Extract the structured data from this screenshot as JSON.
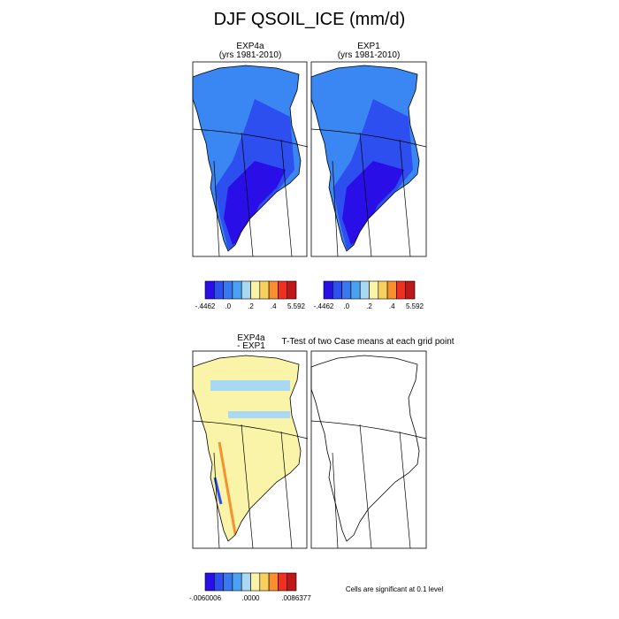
{
  "header": {
    "title": "DJF QSOIL_ICE (mm/d)"
  },
  "panels": [
    {
      "title": "EXP4a",
      "subtitle": "(yrs 1981-2010)"
    },
    {
      "title": "EXP1",
      "subtitle": "(yrs 1981-2010)"
    },
    {
      "title": "EXP4a",
      "subtitle": "- EXP1"
    },
    {
      "title": "T-Test of two Case means at each grid point"
    }
  ],
  "colorbars": [
    {
      "colors": [
        "#2a0ee8",
        "#2d4ff0",
        "#3878f0",
        "#4aa2f2",
        "#a8d8f4",
        "#faf4a8",
        "#f8d060",
        "#f89030",
        "#f03020",
        "#c01818"
      ],
      "labels": [
        "-.4462",
        ".0",
        ".2",
        ".4",
        "5.592"
      ]
    },
    {
      "colors": [
        "#2a0ee8",
        "#2d4ff0",
        "#3878f0",
        "#4aa2f2",
        "#a8d8f4",
        "#faf4a8",
        "#f8d060",
        "#f89030",
        "#f03020",
        "#c01818"
      ],
      "labels": [
        "-.4462",
        ".0",
        ".2",
        ".4",
        "5.592"
      ]
    },
    {
      "colors": [
        "#2a0ee8",
        "#2d4ff0",
        "#3878f0",
        "#4aa2f2",
        "#a8d8f4",
        "#faf4a8",
        "#f8d060",
        "#f89030",
        "#f03020",
        "#c01818"
      ],
      "labels": [
        "-.0060006",
        ".0000",
        ".0086377"
      ]
    }
  ],
  "footnote": "Cells are significant at 0.1 level"
}
